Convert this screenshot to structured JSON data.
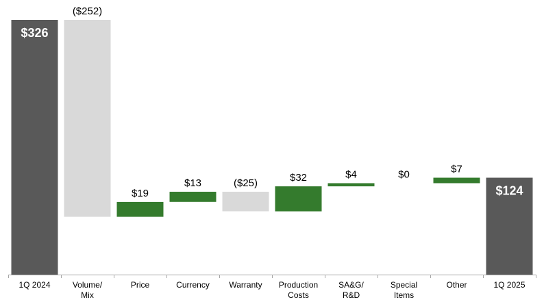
{
  "chart_data": {
    "type": "waterfall",
    "categories": [
      "1Q 2024",
      "Volume/\nMix",
      "Price",
      "Currency",
      "Warranty",
      "Production\nCosts",
      "SA&G/\nR&D",
      "Special\nItems",
      "Other",
      "1Q 2025"
    ],
    "values": [
      326,
      -252,
      19,
      13,
      -25,
      32,
      4,
      0,
      7,
      124
    ],
    "kinds": [
      "total",
      "delta",
      "delta",
      "delta",
      "delta",
      "delta",
      "delta",
      "delta",
      "delta",
      "total"
    ],
    "labels": [
      "$326",
      "($252)",
      "$19",
      "$13",
      "($25)",
      "$32",
      "$4",
      "$0",
      "$7",
      "$124"
    ],
    "ylim": [
      0,
      326
    ],
    "grid": false,
    "colors": {
      "total": "#595959",
      "increase": "#347B2D",
      "decrease": "#D9D9D9",
      "axis": "#A6A6A6",
      "text": "#000000",
      "total_label": "#FFFFFF"
    }
  }
}
